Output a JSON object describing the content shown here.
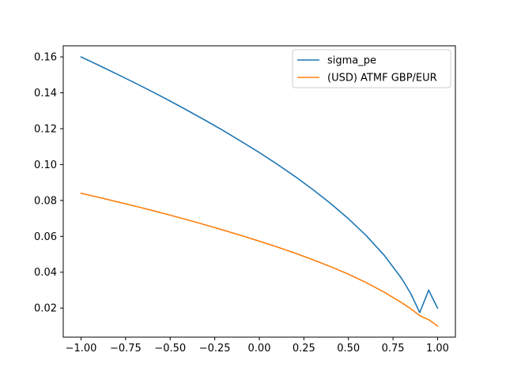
{
  "chart_data": {
    "type": "line",
    "title": "",
    "xlabel": "",
    "ylabel": "",
    "xlim": [
      -1.1,
      1.1
    ],
    "ylim": [
      0.0038,
      0.1662
    ],
    "x_ticks": [
      -1.0,
      -0.75,
      -0.5,
      -0.25,
      0.0,
      0.25,
      0.5,
      0.75,
      1.0
    ],
    "x_tick_labels": [
      "−1.00",
      "−0.75",
      "−0.50",
      "−0.25",
      "0.00",
      "0.25",
      "0.50",
      "0.75",
      "1.00"
    ],
    "y_ticks": [
      0.02,
      0.04,
      0.06,
      0.08,
      0.1,
      0.12,
      0.14,
      0.16
    ],
    "y_tick_labels": [
      "0.02",
      "0.04",
      "0.06",
      "0.08",
      "0.10",
      "0.12",
      "0.14",
      "0.16"
    ],
    "grid": false,
    "legend_position": "top-right",
    "x": [
      -1.0,
      -0.9,
      -0.8,
      -0.7,
      -0.6,
      -0.5,
      -0.4,
      -0.3,
      -0.2,
      -0.1,
      0.0,
      0.1,
      0.2,
      0.3,
      0.4,
      0.5,
      0.6,
      0.7,
      0.8,
      0.85,
      0.9,
      0.95,
      0.98,
      1.0
    ],
    "series": [
      {
        "name": "sigma_pe",
        "color": "#1f77b4",
        "values": [
          0.16,
          0.1553,
          0.1505,
          0.1456,
          0.1406,
          0.1354,
          0.13,
          0.1245,
          0.1188,
          0.1128,
          0.1067,
          0.1002,
          0.0934,
          0.0861,
          0.0783,
          0.0698,
          0.0604,
          0.0495,
          0.0363,
          0.028,
          0.0175,
          0.03,
          0.024,
          0.02
        ]
      },
      {
        "name": "(USD) ATMF GBP/EUR",
        "color": "#ff7f0e",
        "values": [
          0.084,
          0.0817,
          0.0793,
          0.0769,
          0.0744,
          0.0718,
          0.0691,
          0.0663,
          0.0634,
          0.0604,
          0.0573,
          0.0541,
          0.0506,
          0.047,
          0.0431,
          0.0389,
          0.0342,
          0.0289,
          0.0229,
          0.0196,
          0.0158,
          0.0135,
          0.0115,
          0.01
        ]
      }
    ]
  }
}
